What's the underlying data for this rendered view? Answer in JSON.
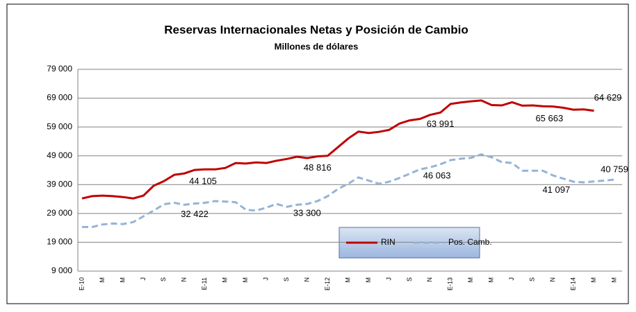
{
  "chart_data": {
    "type": "line",
    "title": "Reservas Internacionales Netas y Posición de Cambio",
    "subtitle": "Millones de dólares",
    "categories": [
      "E-10",
      null,
      "M",
      null,
      "M",
      null,
      "J",
      null,
      "S",
      null,
      "N",
      null,
      "E-11",
      null,
      "M",
      null,
      "M",
      null,
      "J",
      null,
      "S",
      null,
      "N",
      null,
      "E-12",
      null,
      "M",
      null,
      "M",
      null,
      "J",
      null,
      "S",
      null,
      "N",
      null,
      "E-13",
      null,
      "M",
      null,
      "M",
      null,
      "J",
      null,
      "S",
      null,
      "N",
      null,
      "E-14",
      null,
      "M",
      null,
      "M"
    ],
    "series": [
      {
        "name": "RIN",
        "color": "#c00000",
        "dash": false,
        "values": [
          34200,
          35000,
          35200,
          35000,
          34700,
          34200,
          35200,
          38600,
          40200,
          42400,
          42900,
          44105,
          44300,
          44300,
          44800,
          46500,
          46300,
          46700,
          46500,
          47300,
          47900,
          48700,
          48200,
          48816,
          49000,
          52000,
          55000,
          57400,
          56900,
          57300,
          58000,
          60200,
          61300,
          61800,
          63200,
          63991,
          67000,
          67500,
          67900,
          68200,
          66600,
          66500,
          67600,
          66400,
          66500,
          66200,
          66100,
          65663,
          65000,
          65100,
          64629,
          null,
          null
        ],
        "value_labels": [
          null,
          null,
          null,
          null,
          null,
          null,
          null,
          null,
          null,
          null,
          null,
          "44 105",
          null,
          null,
          null,
          null,
          null,
          null,
          null,
          null,
          null,
          null,
          null,
          "48 816",
          null,
          null,
          null,
          null,
          null,
          null,
          null,
          null,
          null,
          null,
          null,
          "63 991",
          null,
          null,
          null,
          null,
          null,
          null,
          null,
          null,
          null,
          null,
          null,
          "65 663",
          null,
          null,
          "64 629",
          null,
          null
        ]
      },
      {
        "name": "Pos. Camb.",
        "color": "#95b3d7",
        "dash": true,
        "values": [
          24300,
          24300,
          25200,
          25500,
          25300,
          26000,
          28000,
          30000,
          32200,
          32700,
          32000,
          32422,
          32700,
          33300,
          33100,
          32900,
          30300,
          30000,
          31000,
          32300,
          31300,
          32000,
          32300,
          33300,
          35000,
          37500,
          39300,
          41500,
          40400,
          39300,
          40000,
          41300,
          42800,
          44300,
          45000,
          46063,
          47500,
          48000,
          48300,
          49500,
          48500,
          46800,
          46500,
          43800,
          43800,
          43800,
          42200,
          41097,
          40000,
          39800,
          40100,
          40400,
          40759
        ],
        "value_labels": [
          null,
          null,
          null,
          null,
          null,
          null,
          null,
          null,
          null,
          null,
          null,
          "32 422",
          null,
          null,
          null,
          null,
          null,
          null,
          null,
          null,
          null,
          null,
          null,
          "33 300",
          null,
          null,
          null,
          null,
          null,
          null,
          null,
          null,
          null,
          null,
          null,
          "46 063",
          null,
          null,
          null,
          null,
          null,
          null,
          null,
          null,
          null,
          null,
          null,
          "41 097",
          null,
          null,
          null,
          null,
          "40 759"
        ]
      }
    ],
    "ylim": [
      9000,
      79000
    ],
    "yticks": [
      {
        "value": 9000,
        "label": "9 000"
      },
      {
        "value": 19000,
        "label": "19 000"
      },
      {
        "value": 29000,
        "label": "29 000"
      },
      {
        "value": 39000,
        "label": "39 000"
      },
      {
        "value": 49000,
        "label": "49 000"
      },
      {
        "value": 59000,
        "label": "59 000"
      },
      {
        "value": 69000,
        "label": "69 000"
      },
      {
        "value": 79000,
        "label": "79 000"
      }
    ],
    "grid": true,
    "legend": "bottom"
  }
}
